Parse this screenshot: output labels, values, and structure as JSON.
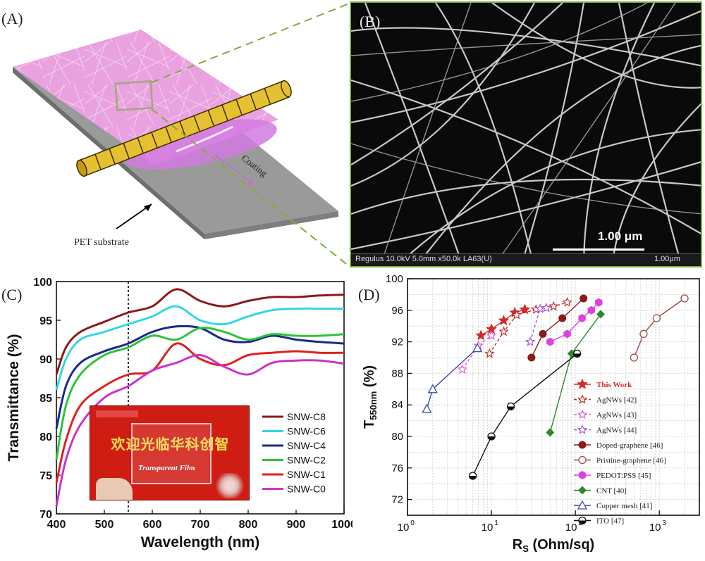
{
  "figure": {
    "panels": {
      "a": {
        "label": "(A)",
        "coating_label": "Coating",
        "substrate_label": "PET substrate"
      },
      "b": {
        "label": "(B)",
        "scale_bar_label": "1.00 μm",
        "footer_left": "Regulus 10.0kV 5.0mm x50.0k LA63(U)",
        "footer_right": "1.00μm"
      }
    }
  },
  "chart_data": [
    {
      "type": "line",
      "panel_label": "(C)",
      "xlabel": "Wavelength (nm)",
      "ylabel": "Transmittance (%)",
      "xlim": [
        400,
        1000
      ],
      "ylim": [
        70,
        100
      ],
      "xticks": [
        400,
        500,
        600,
        700,
        800,
        900,
        1000
      ],
      "yticks": [
        70,
        75,
        80,
        85,
        90,
        95,
        100
      ],
      "reference_line_x": 550,
      "legend_position": "right",
      "x": [
        400,
        420,
        450,
        500,
        550,
        600,
        650,
        700,
        750,
        800,
        850,
        900,
        950,
        1000
      ],
      "series": [
        {
          "name": "SNW-C8",
          "color": "#8b1a1a",
          "values": [
            88,
            91.5,
            93.5,
            94.8,
            96,
            96.8,
            99,
            97.5,
            96.8,
            97.5,
            98,
            98,
            98.2,
            98.3
          ]
        },
        {
          "name": "SNW-C6",
          "color": "#33d6e6",
          "values": [
            86,
            90,
            92.5,
            93.5,
            94.5,
            95.5,
            96.8,
            95,
            94.5,
            95.5,
            96.3,
            96.5,
            96.5,
            96.5
          ]
        },
        {
          "name": "SNW-C4",
          "color": "#1a2a8c",
          "values": [
            81,
            86.5,
            89.5,
            91,
            92,
            93.5,
            94.2,
            94,
            92.5,
            92.2,
            93,
            92.5,
            92.2,
            92
          ]
        },
        {
          "name": "SNW-C2",
          "color": "#2cc43a",
          "values": [
            77,
            84,
            88,
            90.5,
            91.5,
            93,
            92.5,
            94,
            93.5,
            92.5,
            93.2,
            93,
            93,
            93.2
          ]
        },
        {
          "name": "SNW-C1",
          "color": "#e02020",
          "values": [
            74,
            79.5,
            84,
            86.5,
            88,
            88.5,
            92,
            90,
            89.2,
            90.5,
            90.8,
            91,
            90.8,
            90.8
          ]
        },
        {
          "name": "SNW-C0",
          "color": "#cc33cc",
          "values": [
            71,
            77,
            81.5,
            85,
            86.5,
            88.5,
            89.5,
            90.5,
            89,
            88,
            89.5,
            89.8,
            89.8,
            89.4
          ]
        }
      ],
      "inset_photo": {
        "banner_text": "欢迎光临华科创智",
        "film_label": "Transparent Film"
      }
    },
    {
      "type": "scatter",
      "panel_label": "(D)",
      "xlabel": "R_S (Ohm/sq)",
      "ylabel": "T_550nm (%)",
      "xscale": "log",
      "xlim": [
        1,
        3000
      ],
      "ylim": [
        70,
        100
      ],
      "xticks": [
        1,
        10,
        100,
        1000
      ],
      "xtick_labels": [
        "10^0",
        "10^1",
        "10^2",
        "10^3"
      ],
      "yticks": [
        72,
        76,
        80,
        84,
        88,
        92,
        96,
        100
      ],
      "grid": true,
      "legend_position": "lower right",
      "series": [
        {
          "name": "This Work",
          "color": "#d42a2a",
          "marker": "star-filled",
          "line": "solid",
          "points": [
            [
              7.5,
              92.8
            ],
            [
              10,
              93.6
            ],
            [
              14,
              94.7
            ],
            [
              19,
              95.7
            ],
            [
              25,
              96.1
            ]
          ]
        },
        {
          "name": "AgNWs [42]",
          "color": "#c0302c",
          "marker": "star-open",
          "line": "dashed",
          "points": [
            [
              9.5,
              90.5
            ],
            [
              14,
              93.3
            ],
            [
              20,
              95.4
            ],
            [
              34,
              96.1
            ],
            [
              55,
              96.5
            ],
            [
              80,
              97
            ]
          ]
        },
        {
          "name": "AgNWs [43]",
          "color": "#e35bd0",
          "marker": "star-open",
          "line": "dashed",
          "points": [
            [
              4.5,
              88.5
            ],
            [
              7,
              91.5
            ],
            [
              10,
              92.8
            ]
          ]
        },
        {
          "name": "AgNWs [44]",
          "color": "#a35bd8",
          "marker": "star-open",
          "line": "dashed",
          "points": [
            [
              29,
              92
            ],
            [
              38,
              96.2
            ],
            [
              45,
              96.3
            ]
          ]
        },
        {
          "name": "Doped-graphene [46]",
          "color": "#8b1a1a",
          "marker": "circle-filled",
          "line": "solid",
          "points": [
            [
              30,
              90
            ],
            [
              41,
              93
            ],
            [
              70,
              95
            ],
            [
              125,
              97.5
            ]
          ]
        },
        {
          "name": "Pristine-graphene [46]",
          "color": "#9b4a4a",
          "marker": "circle-open",
          "line": "solid",
          "points": [
            [
              500,
              90
            ],
            [
              650,
              93
            ],
            [
              930,
              95
            ],
            [
              2000,
              97.5
            ]
          ]
        },
        {
          "name": "PEDOT:PSS [45]",
          "color": "#e040e0",
          "marker": "hexagon-filled",
          "line": "solid",
          "points": [
            [
              50,
              92
            ],
            [
              80,
              93
            ],
            [
              120,
              95
            ],
            [
              155,
              96
            ],
            [
              190,
              97
            ]
          ]
        },
        {
          "name": "CNT [40]",
          "color": "#2a8a2a",
          "marker": "diamond-filled",
          "line": "solid",
          "points": [
            [
              50,
              80.5
            ],
            [
              90,
              90.5
            ],
            [
              200,
              95.5
            ]
          ]
        },
        {
          "name": "Copper mesh [41]",
          "color": "#3a4aa8",
          "marker": "triangle-open",
          "line": "solid",
          "points": [
            [
              1.7,
              83.5
            ],
            [
              2,
              86
            ],
            [
              6.8,
              91.2
            ]
          ]
        },
        {
          "name": "ITO [47]",
          "color": "#111111",
          "marker": "circle-half",
          "line": "solid",
          "points": [
            [
              6,
              75
            ],
            [
              10,
              80
            ],
            [
              17,
              83.8
            ],
            [
              105,
              90.5
            ]
          ]
        }
      ]
    }
  ]
}
